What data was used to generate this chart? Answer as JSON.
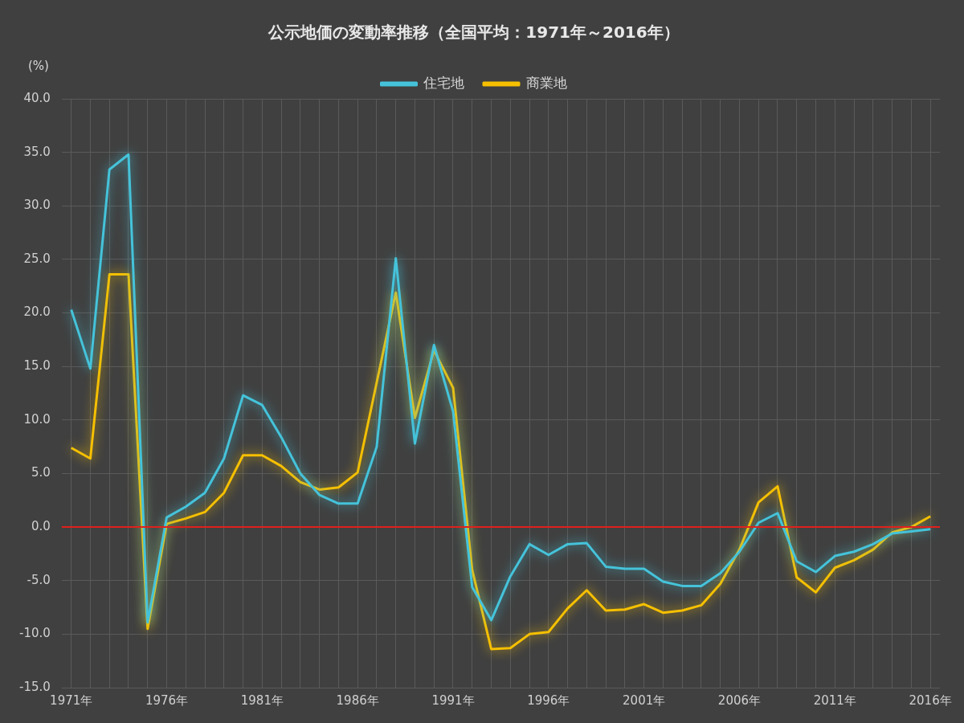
{
  "chart_data": {
    "type": "line",
    "title": "公示地価の変動率推移（全国平均：1971年～2016年）",
    "ylabel": "(%)",
    "categories": [
      "1971年",
      null,
      null,
      null,
      null,
      "1976年",
      null,
      null,
      null,
      null,
      "1981年",
      null,
      null,
      null,
      null,
      "1986年",
      null,
      null,
      null,
      null,
      "1991年",
      null,
      null,
      null,
      null,
      "1996年",
      null,
      null,
      null,
      null,
      "2001年",
      null,
      null,
      null,
      null,
      "2006年",
      null,
      null,
      null,
      null,
      "2011年",
      null,
      null,
      null,
      null,
      "2016年"
    ],
    "series": [
      {
        "name": "住宅地",
        "color": "#45c3da",
        "values": [
          20.3,
          14.8,
          33.4,
          34.8,
          -8.9,
          0.9,
          1.9,
          3.2,
          6.4,
          12.3,
          11.4,
          8.4,
          5.0,
          3.0,
          2.2,
          2.2,
          7.5,
          25.1,
          7.8,
          17.0,
          10.8,
          -5.6,
          -8.7,
          -4.6,
          -1.6,
          -2.6,
          -1.6,
          -1.5,
          -3.7,
          -3.9,
          -3.9,
          -5.1,
          -5.5,
          -5.5,
          -4.3,
          -2.3,
          0.4,
          1.3,
          -3.2,
          -4.2,
          -2.7,
          -2.3,
          -1.6,
          -0.6,
          -0.4,
          -0.2
        ]
      },
      {
        "name": "商業地",
        "color": "#f6c000",
        "values": [
          7.4,
          6.4,
          23.6,
          23.6,
          -9.5,
          0.3,
          0.8,
          1.4,
          3.2,
          6.7,
          6.7,
          5.7,
          4.2,
          3.5,
          3.7,
          5.1,
          13.5,
          21.9,
          10.2,
          16.5,
          13.0,
          -4.0,
          -11.4,
          -11.3,
          -10.0,
          -9.8,
          -7.6,
          -5.9,
          -7.8,
          -7.7,
          -7.2,
          -8.0,
          -7.8,
          -7.3,
          -5.3,
          -2.1,
          2.3,
          3.8,
          -4.7,
          -6.1,
          -3.8,
          -3.1,
          -2.1,
          -0.5,
          0.0,
          1.0
        ]
      }
    ],
    "ylim": [
      -15,
      40
    ],
    "yticks": [
      {
        "value": -15,
        "label": "-15.0"
      },
      {
        "value": -10,
        "label": "-10.0"
      },
      {
        "value": -5,
        "label": "-5.0"
      },
      {
        "value": 0,
        "label": "0.0"
      },
      {
        "value": 5,
        "label": "5.0"
      },
      {
        "value": 10,
        "label": "10.0"
      },
      {
        "value": 15,
        "label": "15.0"
      },
      {
        "value": 20,
        "label": "20.0"
      },
      {
        "value": 25,
        "label": "25.0"
      },
      {
        "value": 30,
        "label": "30.0"
      },
      {
        "value": 35,
        "label": "35.0"
      },
      {
        "value": 40,
        "label": "40.0"
      }
    ],
    "grid": true,
    "legend": "top",
    "marker": "none",
    "line_style": "solid",
    "ref_lines": [
      {
        "axis": "y",
        "value": 0,
        "color": "#e0201c"
      }
    ]
  }
}
